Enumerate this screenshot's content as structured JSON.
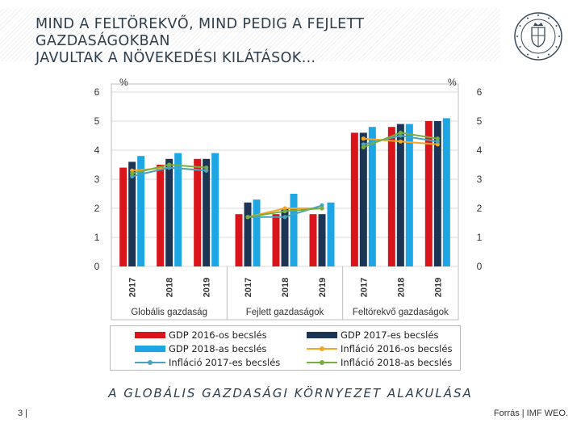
{
  "header": {
    "title_line1": "MIND A FELTÖREKVŐ, MIND PEDIG A FEJLETT GAZDASÁGOKBAN",
    "title_line2": "JAVULTAK A NÖVEKEDÉSI KILÁTÁSOK…"
  },
  "footer": {
    "subtitle": "A GLOBÁLIS GAZDASÁGI KÖRNYEZET ALAKULÁSA",
    "page_number": "3 |",
    "source": "Forrás | IMF WEO."
  },
  "colors": {
    "gdp2016": "#d9141b",
    "gdp2017": "#1d3554",
    "gdp2018": "#1ea5e3",
    "inf2016": "#f6a623",
    "inf2017": "#48a3bf",
    "inf2018": "#77ae3d",
    "grid": "#d9d9d9",
    "header": "#2f3e4a"
  },
  "chart_data": {
    "type": "bar",
    "unit_left": "%",
    "unit_right": "%",
    "ylim": [
      0,
      6
    ],
    "yticks": [
      0,
      1,
      2,
      3,
      4,
      5,
      6
    ],
    "groups": [
      "Globális gazdaság",
      "Fejlett gazdaságok",
      "Feltörekvő gazdaságok"
    ],
    "years": [
      "2017",
      "2018",
      "2019"
    ],
    "series": [
      {
        "name": "GDP 2016-os becslés",
        "kind": "bar",
        "color_key": "gdp2016",
        "values": [
          [
            3.4,
            3.5,
            3.7
          ],
          [
            1.8,
            1.8,
            1.8
          ],
          [
            4.6,
            4.8,
            5.0
          ]
        ]
      },
      {
        "name": "GDP 2017-es becslés",
        "kind": "bar",
        "color_key": "gdp2017",
        "values": [
          [
            3.6,
            3.7,
            3.7
          ],
          [
            2.2,
            2.0,
            1.8
          ],
          [
            4.6,
            4.9,
            5.0
          ]
        ]
      },
      {
        "name": "GDP 2018-as becslés",
        "kind": "bar",
        "color_key": "gdp2018",
        "values": [
          [
            3.8,
            3.9,
            3.9
          ],
          [
            2.3,
            2.5,
            2.2
          ],
          [
            4.8,
            4.9,
            5.1
          ]
        ]
      },
      {
        "name": "Infláció 2016-os becslés",
        "kind": "line",
        "color_key": "inf2016",
        "values": [
          [
            3.3,
            3.4,
            3.3
          ],
          [
            1.7,
            2.0,
            2.0
          ],
          [
            4.4,
            4.3,
            4.2
          ]
        ]
      },
      {
        "name": "Infláció 2017-es becslés",
        "kind": "line",
        "color_key": "inf2017",
        "values": [
          [
            3.1,
            3.4,
            3.3
          ],
          [
            1.7,
            1.7,
            2.1
          ],
          [
            4.2,
            4.5,
            4.3
          ]
        ]
      },
      {
        "name": "Infláció 2018-as becslés",
        "kind": "line",
        "color_key": "inf2018",
        "values": [
          [
            3.2,
            3.5,
            3.4
          ],
          [
            1.7,
            1.9,
            2.0
          ],
          [
            4.1,
            4.6,
            4.4
          ]
        ]
      }
    ]
  }
}
